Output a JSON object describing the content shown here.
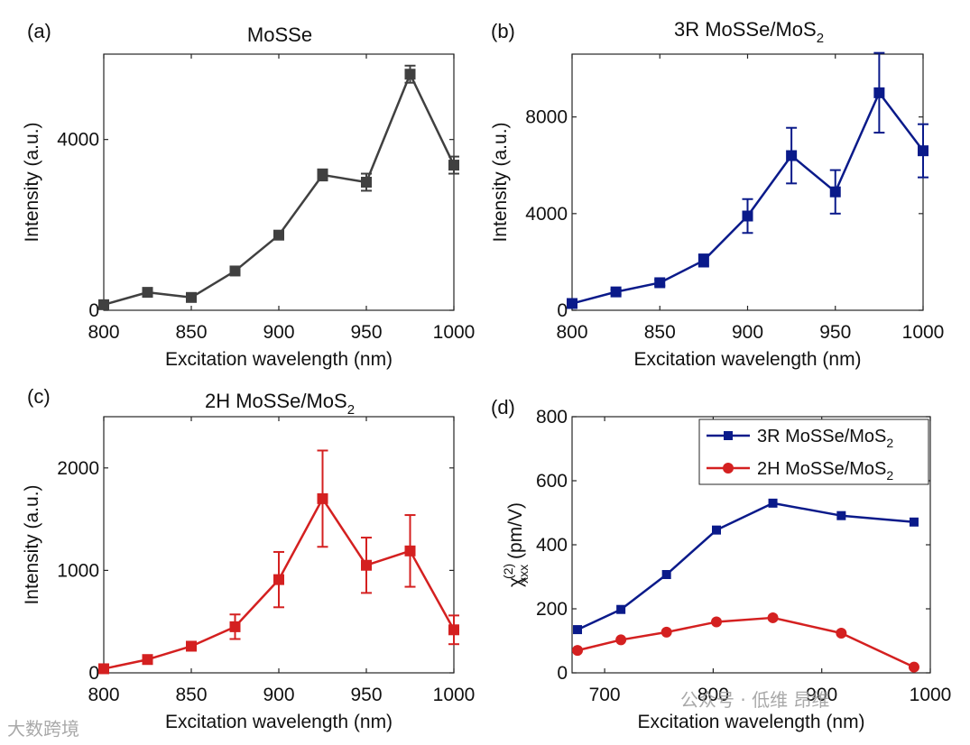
{
  "figure": {
    "watermark_left": "大数跨境",
    "watermark_right": "公众号 · 低维 昂维"
  },
  "chart_data": [
    {
      "id": "a",
      "panel_label": "(a)",
      "type": "line",
      "title": "MoSSe",
      "xlabel": "Excitation wavelength (nm)",
      "ylabel": "Intensity (a.u.)",
      "color": "#404040",
      "marker": "square",
      "errorbars": true,
      "xlim": [
        800,
        1000
      ],
      "ylim": [
        0,
        6000
      ],
      "xticks": [
        800,
        850,
        900,
        950,
        1000
      ],
      "yticks": [
        0,
        4000
      ],
      "x": [
        800,
        825,
        850,
        875,
        900,
        925,
        950,
        975,
        1000
      ],
      "y": [
        130,
        420,
        300,
        920,
        1760,
        3170,
        3000,
        5530,
        3400
      ],
      "err": [
        60,
        60,
        60,
        70,
        90,
        130,
        200,
        200,
        200
      ]
    },
    {
      "id": "b",
      "panel_label": "(b)",
      "type": "line",
      "title": "3R MoSSe/MoS",
      "title_sub": "2",
      "xlabel": "Excitation wavelength (nm)",
      "ylabel": "Intensity (a.u.)",
      "color": "#0a1a8a",
      "marker": "square",
      "errorbars": true,
      "xlim": [
        800,
        1000
      ],
      "ylim": [
        0,
        10600
      ],
      "xticks": [
        800,
        850,
        900,
        950,
        1000
      ],
      "yticks": [
        0,
        4000,
        8000
      ],
      "x": [
        800,
        825,
        850,
        875,
        900,
        925,
        950,
        975,
        1000
      ],
      "y": [
        280,
        760,
        1140,
        2060,
        3900,
        6400,
        4900,
        9000,
        6600
      ],
      "err": [
        80,
        100,
        120,
        250,
        700,
        1150,
        900,
        1650,
        1100
      ]
    },
    {
      "id": "c",
      "panel_label": "(c)",
      "type": "line",
      "title": "2H MoSSe/MoS",
      "title_sub": "2",
      "xlabel": "Excitation wavelength (nm)",
      "ylabel": "Intensity (a.u.)",
      "color": "#d42020",
      "marker": "square",
      "errorbars": true,
      "xlim": [
        800,
        1000
      ],
      "ylim": [
        0,
        2500
      ],
      "xticks": [
        800,
        850,
        900,
        950,
        1000
      ],
      "yticks": [
        0,
        1000,
        2000
      ],
      "x": [
        800,
        825,
        850,
        875,
        900,
        925,
        950,
        975,
        1000
      ],
      "y": [
        40,
        130,
        260,
        450,
        910,
        1700,
        1050,
        1190,
        420
      ],
      "err": [
        10,
        20,
        25,
        120,
        270,
        470,
        270,
        350,
        140
      ]
    },
    {
      "id": "d",
      "panel_label": "(d)",
      "type": "line",
      "title": "",
      "xlabel": "Excitation wavelength (nm)",
      "ylabel_prefix": "χ",
      "ylabel_sup": "(2)",
      "ylabel_sub": "xxx",
      "ylabel_suffix": " (pm/V)",
      "errorbars": false,
      "xlim": [
        670,
        1000
      ],
      "ylim": [
        0,
        800
      ],
      "xticks": [
        700,
        800,
        900,
        1000
      ],
      "yticks": [
        0,
        200,
        400,
        600,
        800
      ],
      "legend_position": "top-right",
      "series": [
        {
          "name": "3R MoSSe/MoS",
          "name_sub": "2",
          "color": "#0a1a8a",
          "marker": "square",
          "x": [
            675,
            715,
            757,
            803,
            855,
            918,
            985
          ],
          "y": [
            135,
            198,
            307,
            446,
            530,
            491,
            471
          ]
        },
        {
          "name": "2H MoSSe/MoS",
          "name_sub": "2",
          "color": "#d42020",
          "marker": "circle",
          "x": [
            675,
            715,
            757,
            803,
            855,
            918,
            985
          ],
          "y": [
            70,
            103,
            127,
            159,
            172,
            124,
            18
          ]
        }
      ]
    }
  ]
}
